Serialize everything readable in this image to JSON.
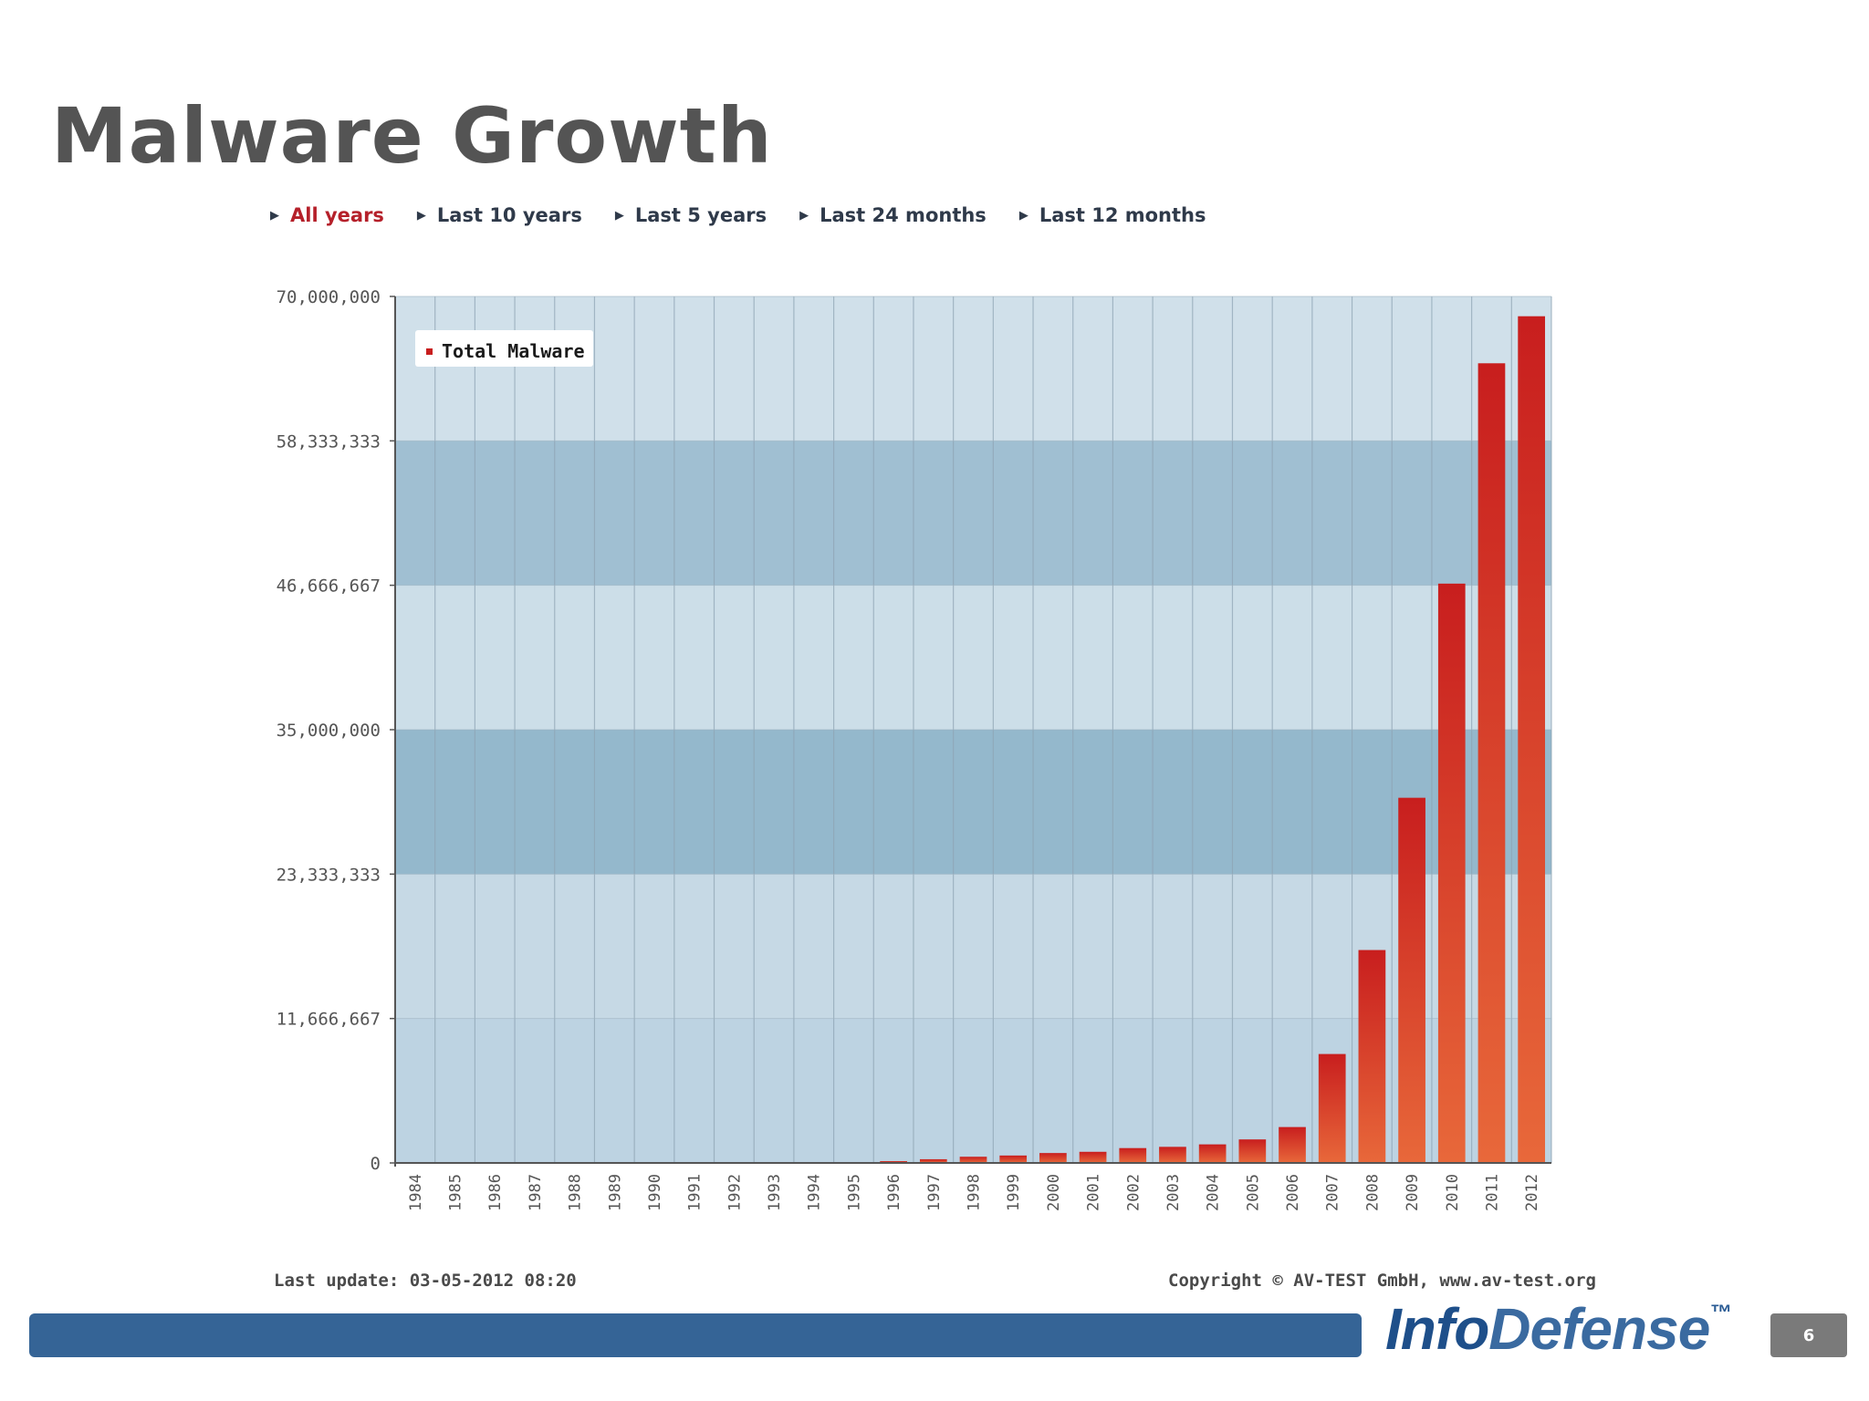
{
  "slide": {
    "title": "Malware Growth",
    "page_number": "6",
    "logo": {
      "part1": "Info",
      "part2": "Defense",
      "mark": "™"
    }
  },
  "tabs": [
    {
      "label": "All years",
      "active": true
    },
    {
      "label": "Last 10 years",
      "active": false
    },
    {
      "label": "Last 5 years",
      "active": false
    },
    {
      "label": "Last 24 months",
      "active": false
    },
    {
      "label": "Last 12 months",
      "active": false
    }
  ],
  "footer": {
    "last_update": "Last update: 03-05-2012 08:20",
    "copyright": "Copyright © AV-TEST GmbH, www.av-test.org"
  },
  "colors": {
    "bar_top": "#c81e1e",
    "bar_bottom": "#e8683a",
    "plot_bg": "#d2e2ec",
    "band_dark": "#7fa9c2",
    "footer_bar": "#356496",
    "active_tab": "#b5202a"
  },
  "chart_data": {
    "type": "bar",
    "title": "",
    "xlabel": "",
    "ylabel": "",
    "legend": [
      "Total Malware"
    ],
    "legend_position": "top-left",
    "grid": true,
    "ylim": [
      0,
      70000000
    ],
    "yticks": [
      0,
      11666667,
      23333333,
      35000000,
      46666667,
      58333333,
      70000000
    ],
    "ytick_labels": [
      "0",
      "11,666,667",
      "23,333,333",
      "35,000,000",
      "46,666,667",
      "58,333,333",
      "70,000,000"
    ],
    "categories": [
      "1984",
      "1985",
      "1986",
      "1987",
      "1988",
      "1989",
      "1990",
      "1991",
      "1992",
      "1993",
      "1994",
      "1995",
      "1996",
      "1997",
      "1998",
      "1999",
      "2000",
      "2001",
      "2002",
      "2003",
      "2004",
      "2005",
      "2006",
      "2007",
      "2008",
      "2009",
      "2010",
      "2011",
      "2012"
    ],
    "series": [
      {
        "name": "Total Malware",
        "values": [
          0,
          0,
          0,
          0,
          0,
          0,
          0,
          0,
          0,
          0,
          0,
          0,
          100000,
          300000,
          500000,
          600000,
          800000,
          900000,
          1200000,
          1300000,
          1500000,
          1900000,
          2900000,
          8800000,
          17200000,
          29500000,
          46800000,
          64600000,
          68400000
        ]
      }
    ]
  }
}
